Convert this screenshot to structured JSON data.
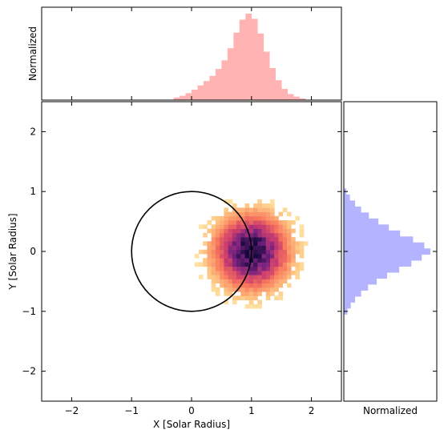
{
  "chart_data": {
    "type": "heatmap",
    "xlabel": "X [Solar Radius]",
    "ylabel": "Y [Solar Radius]",
    "xlim": [
      -2.5,
      2.5
    ],
    "ylim": [
      -2.5,
      2.5
    ],
    "x_ticks": [
      -2,
      -1,
      0,
      1,
      2
    ],
    "y_ticks": [
      -2,
      -1,
      0,
      1,
      2
    ],
    "x_tick_labels": [
      "−2",
      "−1",
      "0",
      "1",
      "2"
    ],
    "y_tick_labels": [
      "−2",
      "−1",
      "0",
      "1",
      "2"
    ],
    "grid": false,
    "colormap": "magma_r",
    "density": {
      "center_x": 1.0,
      "center_y": 0.0,
      "sigma_x": 0.32,
      "sigma_y": 0.32,
      "extent": 1.65,
      "bin_width": 0.07
    },
    "overlay_circle": {
      "center_x": 0.0,
      "center_y": 0.0,
      "radius": 1.0,
      "color": "#000000"
    },
    "top_histogram": {
      "ylabel": "Normalized",
      "axis": "x",
      "color": "#ffb3b3",
      "bins": [
        [
          -0.25,
          0.03
        ],
        [
          -0.15,
          0.05
        ],
        [
          -0.05,
          0.08
        ],
        [
          0.05,
          0.12
        ],
        [
          0.15,
          0.17
        ],
        [
          0.25,
          0.22
        ],
        [
          0.35,
          0.28
        ],
        [
          0.45,
          0.36
        ],
        [
          0.55,
          0.46
        ],
        [
          0.65,
          0.6
        ],
        [
          0.75,
          0.78
        ],
        [
          0.85,
          0.93
        ],
        [
          0.95,
          1.0
        ],
        [
          1.05,
          0.94
        ],
        [
          1.15,
          0.77
        ],
        [
          1.25,
          0.56
        ],
        [
          1.35,
          0.37
        ],
        [
          1.45,
          0.23
        ],
        [
          1.55,
          0.13
        ],
        [
          1.65,
          0.07
        ],
        [
          1.75,
          0.04
        ],
        [
          1.85,
          0.02
        ]
      ]
    },
    "right_histogram": {
      "xlabel": "Normalized",
      "axis": "y",
      "color": "#b3b3ff",
      "bins": [
        [
          -1.0,
          0.04
        ],
        [
          -0.9,
          0.08
        ],
        [
          -0.8,
          0.13
        ],
        [
          -0.7,
          0.2
        ],
        [
          -0.6,
          0.28
        ],
        [
          -0.5,
          0.38
        ],
        [
          -0.4,
          0.5
        ],
        [
          -0.3,
          0.64
        ],
        [
          -0.2,
          0.78
        ],
        [
          -0.1,
          0.9
        ],
        [
          0.0,
          1.0
        ],
        [
          0.1,
          0.93
        ],
        [
          0.2,
          0.8
        ],
        [
          0.3,
          0.65
        ],
        [
          0.4,
          0.52
        ],
        [
          0.5,
          0.4
        ],
        [
          0.6,
          0.29
        ],
        [
          0.7,
          0.2
        ],
        [
          0.8,
          0.13
        ],
        [
          0.9,
          0.07
        ],
        [
          1.0,
          0.03
        ]
      ]
    }
  }
}
